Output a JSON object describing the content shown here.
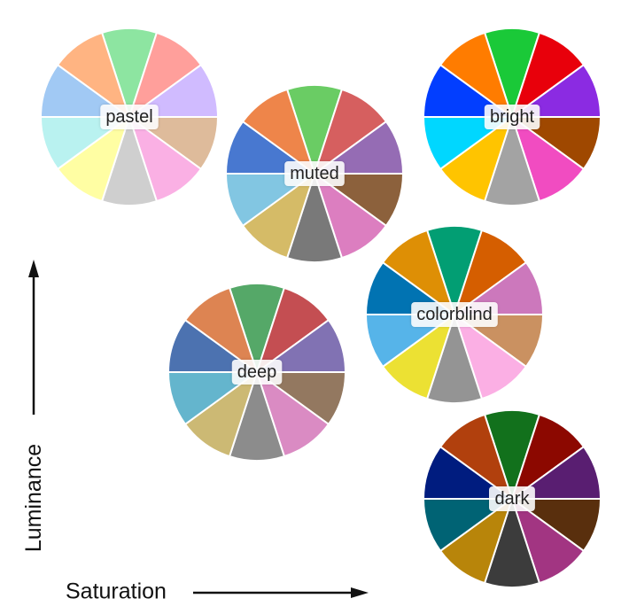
{
  "axes": {
    "x_label": "Saturation",
    "y_label": "Luminance",
    "axis_color": "#111111"
  },
  "palettes": [
    {
      "name": "pastel",
      "colors": [
        "#8de5a1",
        "#ff9f9b",
        "#d0bbff",
        "#debb9b",
        "#fab0e4",
        "#cfcfcf",
        "#fffea3",
        "#b9f2f0",
        "#a1c9f4",
        "#ffb482"
      ]
    },
    {
      "name": "muted",
      "colors": [
        "#6acc64",
        "#d65f5f",
        "#956cb4",
        "#8c613c",
        "#dc7ec0",
        "#797979",
        "#d5bb67",
        "#82c6e2",
        "#4878d0",
        "#ee854a"
      ]
    },
    {
      "name": "bright",
      "colors": [
        "#1ac938",
        "#e8000b",
        "#8b2be2",
        "#9f4800",
        "#f14cc1",
        "#a3a3a3",
        "#ffc400",
        "#00d7ff",
        "#023eff",
        "#ff7c00"
      ]
    },
    {
      "name": "deep",
      "colors": [
        "#55a868",
        "#c44e52",
        "#8172b3",
        "#937860",
        "#da8bc3",
        "#8c8c8c",
        "#ccb974",
        "#64b5cd",
        "#4c72b0",
        "#dd8452"
      ]
    },
    {
      "name": "colorblind",
      "colors": [
        "#029e73",
        "#d55e00",
        "#cc78bc",
        "#ca9161",
        "#fbafe4",
        "#949494",
        "#ece133",
        "#56b4e9",
        "#0173b2",
        "#de8f05"
      ]
    },
    {
      "name": "dark",
      "colors": [
        "#12711c",
        "#8c0800",
        "#591e71",
        "#592f0d",
        "#a23582",
        "#3c3c3c",
        "#b8850a",
        "#006374",
        "#001c7f",
        "#b1400d"
      ]
    }
  ]
}
